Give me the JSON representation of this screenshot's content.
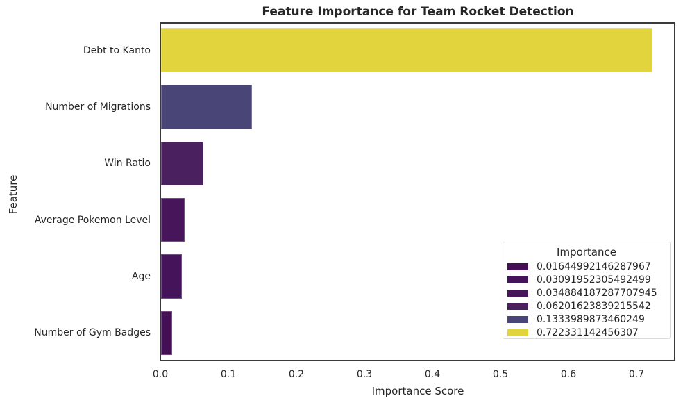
{
  "chart_data": {
    "type": "bar",
    "orientation": "horizontal",
    "title": "Feature Importance for Team Rocket Detection",
    "xlabel": "Importance Score",
    "ylabel": "Feature",
    "categories": [
      "Debt to Kanto",
      "Number of Migrations",
      "Win Ratio",
      "Average Pokemon Level",
      "Age",
      "Number of Gym Badges"
    ],
    "values": [
      0.722331142456307,
      0.1333989873460249,
      0.06201623839215542,
      0.034884187287707945,
      0.03091952305492499,
      0.01644992146287967
    ],
    "colors": [
      "#e2d43c",
      "#4a4577",
      "#4a215e",
      "#46155a",
      "#45135a",
      "#440f55"
    ],
    "xlim": [
      0,
      0.758
    ],
    "xticks": [
      "0.0",
      "0.1",
      "0.2",
      "0.3",
      "0.4",
      "0.5",
      "0.6",
      "0.7"
    ],
    "grid": false,
    "legend": {
      "title": "Importance",
      "position": "lower right",
      "entries": [
        {
          "label": "0.01644992146287967",
          "color": "#440f55"
        },
        {
          "label": "0.03091952305492499",
          "color": "#45135a"
        },
        {
          "label": "0.034884187287707945",
          "color": "#46155a"
        },
        {
          "label": "0.06201623839215542",
          "color": "#4a215e"
        },
        {
          "label": "0.1333989873460249",
          "color": "#4a4577"
        },
        {
          "label": "0.722331142456307",
          "color": "#e2d43c"
        }
      ]
    }
  }
}
